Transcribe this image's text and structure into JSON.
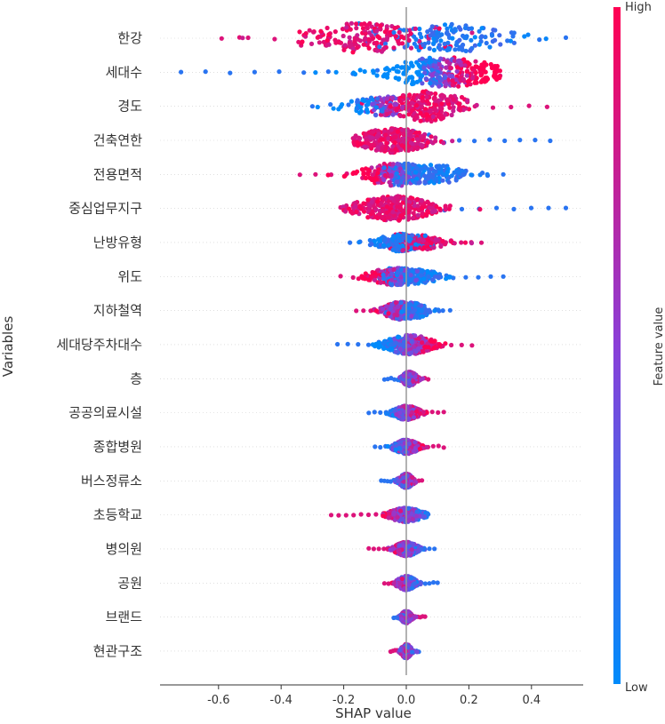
{
  "chart_data": {
    "type": "scatter",
    "subtype": "beeswarm",
    "xlabel": "SHAP value",
    "ylabel": "Variables",
    "xlim": [
      -0.78,
      0.57
    ],
    "xticks": [
      -0.6,
      -0.4,
      -0.2,
      0.0,
      0.2,
      0.4
    ],
    "xtick_labels": [
      "-0.6",
      "-0.4",
      "-0.2",
      "0.0",
      "0.2",
      "0.4"
    ],
    "colorbar": {
      "label": "Feature value",
      "high_label": "High",
      "low_label": "Low",
      "low_color": "#008bfb",
      "high_color": "#ff0052"
    },
    "features": [
      {
        "name": "한강",
        "min": -0.59,
        "max": 0.51,
        "high_side": "negative",
        "modes": [
          [
            -0.15,
            0.5,
            17,
            "high"
          ],
          [
            0.13,
            0.45,
            16,
            "low"
          ]
        ]
      },
      {
        "name": "세대수",
        "min": -0.72,
        "max": 0.3,
        "high_side": "positive",
        "modes": [
          [
            0.12,
            0.9,
            17,
            "mixed"
          ]
        ]
      },
      {
        "name": "경도",
        "min": -0.3,
        "max": 0.45,
        "high_side": "positive",
        "modes": [
          [
            -0.06,
            0.35,
            11,
            "mixed"
          ],
          [
            0.07,
            0.6,
            17,
            "high"
          ]
        ]
      },
      {
        "name": "건축연한",
        "min": -0.17,
        "max": 0.46,
        "high_side": "negative",
        "modes": [
          [
            -0.04,
            0.7,
            14,
            "high"
          ]
        ]
      },
      {
        "name": "전용면적",
        "min": -0.34,
        "max": 0.31,
        "high_side": "negative",
        "modes": [
          [
            -0.03,
            0.5,
            13,
            "mixed"
          ],
          [
            0.08,
            0.5,
            11,
            "low"
          ]
        ]
      },
      {
        "name": "중심업무지구",
        "min": -0.21,
        "max": 0.51,
        "high_side": "negative",
        "modes": [
          [
            -0.04,
            0.7,
            14,
            "high"
          ]
        ]
      },
      {
        "name": "난방유형",
        "min": -0.18,
        "max": 0.24,
        "high_side": "positive",
        "modes": [
          [
            -0.02,
            0.5,
            10,
            "low"
          ],
          [
            0.05,
            0.5,
            8,
            "high"
          ]
        ]
      },
      {
        "name": "위도",
        "min": -0.21,
        "max": 0.31,
        "high_side": "negative",
        "modes": [
          [
            -0.03,
            0.6,
            10,
            "mixed"
          ],
          [
            0.02,
            0.4,
            8,
            "low"
          ]
        ]
      },
      {
        "name": "지하철역",
        "min": -0.16,
        "max": 0.14,
        "high_side": "negative",
        "modes": [
          [
            -0.02,
            0.6,
            10,
            "mixed"
          ],
          [
            0.02,
            0.4,
            9,
            "low"
          ]
        ]
      },
      {
        "name": "세대당주차대수",
        "min": -0.22,
        "max": 0.21,
        "high_side": "positive",
        "modes": [
          [
            0.01,
            0.9,
            11,
            "mixed"
          ]
        ]
      },
      {
        "name": "층",
        "min": -0.07,
        "max": 0.07,
        "high_side": "positive",
        "modes": [
          [
            0.01,
            1.0,
            8,
            "mixed"
          ]
        ]
      },
      {
        "name": "공공의료시설",
        "min": -0.12,
        "max": 0.12,
        "high_side": "positive",
        "modes": [
          [
            0.0,
            1.0,
            8,
            "mixed"
          ]
        ]
      },
      {
        "name": "종합병원",
        "min": -0.1,
        "max": 0.12,
        "high_side": "positive",
        "modes": [
          [
            0.0,
            1.0,
            8,
            "mixed"
          ]
        ]
      },
      {
        "name": "버스정류소",
        "min": -0.08,
        "max": 0.05,
        "high_side": "positive",
        "modes": [
          [
            0.0,
            1.0,
            8,
            "mixed"
          ]
        ]
      },
      {
        "name": "초등학교",
        "min": -0.24,
        "max": 0.07,
        "high_side": "negative",
        "modes": [
          [
            0.0,
            1.0,
            8,
            "mixed"
          ]
        ]
      },
      {
        "name": "병의원",
        "min": -0.12,
        "max": 0.09,
        "high_side": "negative",
        "modes": [
          [
            0.0,
            1.0,
            8,
            "mixed"
          ]
        ]
      },
      {
        "name": "공원",
        "min": -0.07,
        "max": 0.1,
        "high_side": "negative",
        "modes": [
          [
            0.0,
            1.0,
            8,
            "mixed"
          ]
        ]
      },
      {
        "name": "브랜드",
        "min": -0.04,
        "max": 0.06,
        "high_side": "positive",
        "modes": [
          [
            0.0,
            1.0,
            7,
            "mixed"
          ]
        ]
      },
      {
        "name": "현관구조",
        "min": -0.05,
        "max": 0.04,
        "high_side": "negative",
        "modes": [
          [
            0.0,
            1.0,
            8,
            "mixed"
          ]
        ]
      }
    ]
  }
}
